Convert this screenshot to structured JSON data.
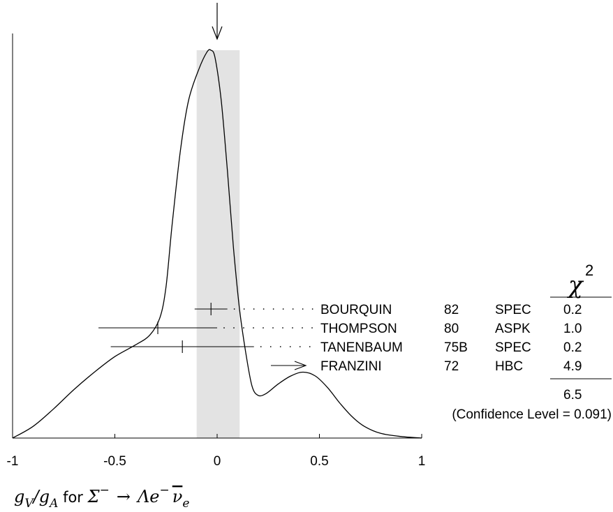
{
  "chart_data": {
    "type": "line",
    "title": "",
    "x": {
      "min": -1,
      "max": 1,
      "ticks": [
        -1,
        -0.5,
        0,
        0.5,
        1
      ],
      "tick_labels": [
        "-1",
        "-0.5",
        "0",
        "0.5",
        "1"
      ]
    },
    "xlabel": {
      "main": "g",
      "sub1": "V",
      "slash": "/g",
      "sub2": "A",
      "for": " for ",
      "sigma": "Σ",
      "sigma_sup": "−",
      "arrow": "→",
      "lambda": "Λ",
      "e": "e",
      "e_sup": "−",
      "nubar": "ν",
      "nu_sub": "e"
    },
    "ideogram_curve": [
      [
        -1.0,
        0.0
      ],
      [
        -0.9,
        0.03
      ],
      [
        -0.8,
        0.075
      ],
      [
        -0.7,
        0.125
      ],
      [
        -0.6,
        0.17
      ],
      [
        -0.5,
        0.21
      ],
      [
        -0.4,
        0.24
      ],
      [
        -0.33,
        0.265
      ],
      [
        -0.28,
        0.31
      ],
      [
        -0.25,
        0.39
      ],
      [
        -0.22,
        0.55
      ],
      [
        -0.18,
        0.74
      ],
      [
        -0.14,
        0.87
      ],
      [
        -0.09,
        0.95
      ],
      [
        -0.05,
        0.995
      ],
      [
        -0.03,
        1.0
      ],
      [
        -0.01,
        0.98
      ],
      [
        0.02,
        0.87
      ],
      [
        0.05,
        0.69
      ],
      [
        0.08,
        0.49
      ],
      [
        0.11,
        0.33
      ],
      [
        0.14,
        0.22
      ],
      [
        0.17,
        0.135
      ],
      [
        0.2,
        0.11
      ],
      [
        0.24,
        0.115
      ],
      [
        0.3,
        0.14
      ],
      [
        0.36,
        0.16
      ],
      [
        0.42,
        0.17
      ],
      [
        0.48,
        0.16
      ],
      [
        0.54,
        0.13
      ],
      [
        0.6,
        0.09
      ],
      [
        0.66,
        0.055
      ],
      [
        0.72,
        0.03
      ],
      [
        0.8,
        0.012
      ],
      [
        0.9,
        0.004
      ],
      [
        1.0,
        0.0
      ]
    ],
    "average": {
      "value": 0.0,
      "band": [
        -0.1,
        0.11
      ]
    },
    "measurements": [
      {
        "author": "BOURQUIN",
        "year": "82",
        "tech": "SPEC",
        "chi2": "0.2",
        "value": -0.03,
        "error": 0.08,
        "off_scale": false
      },
      {
        "author": "THOMPSON",
        "year": "80",
        "tech": "ASPK",
        "chi2": "1.0",
        "value": -0.29,
        "error": 0.29,
        "off_scale": false
      },
      {
        "author": "TANENBAUM",
        "year": "75B",
        "tech": "SPEC",
        "chi2": "0.2",
        "value": -0.17,
        "error": 0.35,
        "off_scale": false
      },
      {
        "author": "FRANZINI",
        "year": "72",
        "tech": "HBC",
        "chi2": "4.9",
        "value": null,
        "error": null,
        "off_scale": true
      }
    ],
    "chi2_header": "χ",
    "chi2_header_sup": "2",
    "chi2_total": "6.5",
    "confidence_level": "(Confidence Level = 0.091)"
  }
}
